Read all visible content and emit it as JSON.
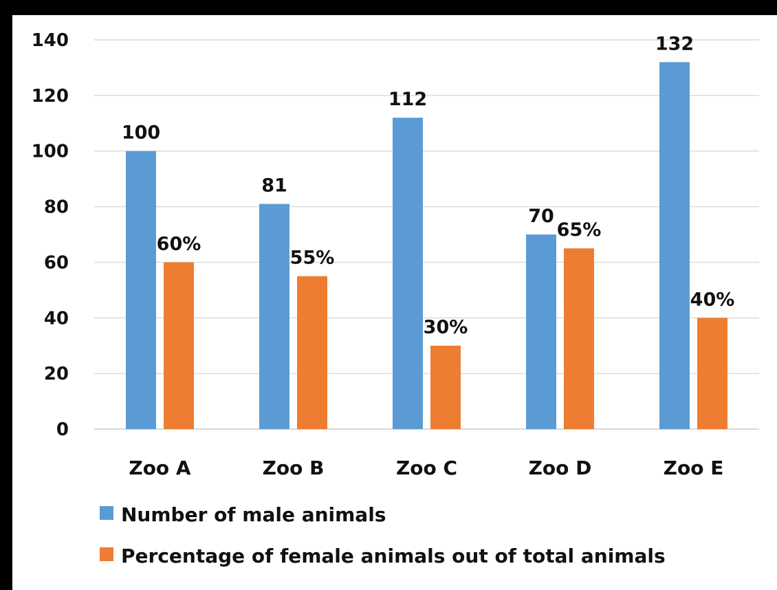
{
  "chart_data": {
    "type": "bar",
    "categories": [
      "Zoo A",
      "Zoo B",
      "Zoo C",
      "Zoo D",
      "Zoo E"
    ],
    "series": [
      {
        "name": "Number of male animals",
        "values": [
          100,
          81,
          112,
          70,
          132
        ],
        "labels": [
          "100",
          "81",
          "112",
          "70",
          "132"
        ],
        "color": "#5b9bd5"
      },
      {
        "name": "Percentage of female animals out of total animals",
        "values": [
          60,
          55,
          30,
          65,
          40
        ],
        "labels": [
          "60%",
          "55%",
          "30%",
          "65%",
          "40%"
        ],
        "color": "#ed7d31"
      }
    ],
    "yticks": [
      "0",
      "20",
      "40",
      "60",
      "80",
      "100",
      "120",
      "140"
    ],
    "ylim": [
      0,
      140
    ],
    "grid": true,
    "gridColor": "#d9d9d9",
    "legend": "bottom-left"
  }
}
